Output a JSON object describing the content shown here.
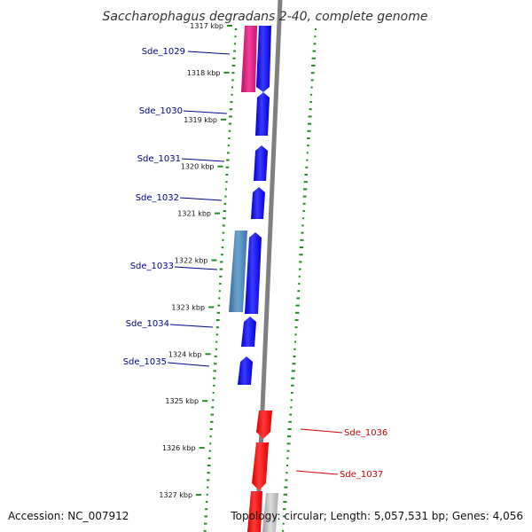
{
  "title": "Saccharophagus degradans 2-40, complete genome",
  "footer": {
    "accession": "Accession: NC_007912",
    "summary": "Topology: circular; Length: 5,057,531 bp; Genes: 4,056"
  },
  "ruler_labels": [
    "1317 kbp",
    "1318 kbp",
    "1319 kbp",
    "1320 kbp",
    "1321 kbp",
    "1322 kbp",
    "1323 kbp",
    "1324 kbp",
    "1325 kbp",
    "1326 kbp",
    "1327 kbp"
  ],
  "gene_labels": [
    "Sde_1029",
    "Sde_1030",
    "Sde_1031",
    "Sde_1032",
    "Sde_1033",
    "Sde_1034",
    "Sde_1035",
    "Sde_1036",
    "Sde_1037"
  ],
  "colors": {
    "forward_cds": "#0000ff",
    "reverse_cds": "#ff0000",
    "forward_label": "#00008b",
    "reverse_label": "#cc0000",
    "pink_feature": "#e6157c",
    "steelblue_feature": "#4682b4",
    "grey_feature": "#bbbbbb",
    "backbone": "#808080",
    "gc_dots": "#228b22"
  }
}
